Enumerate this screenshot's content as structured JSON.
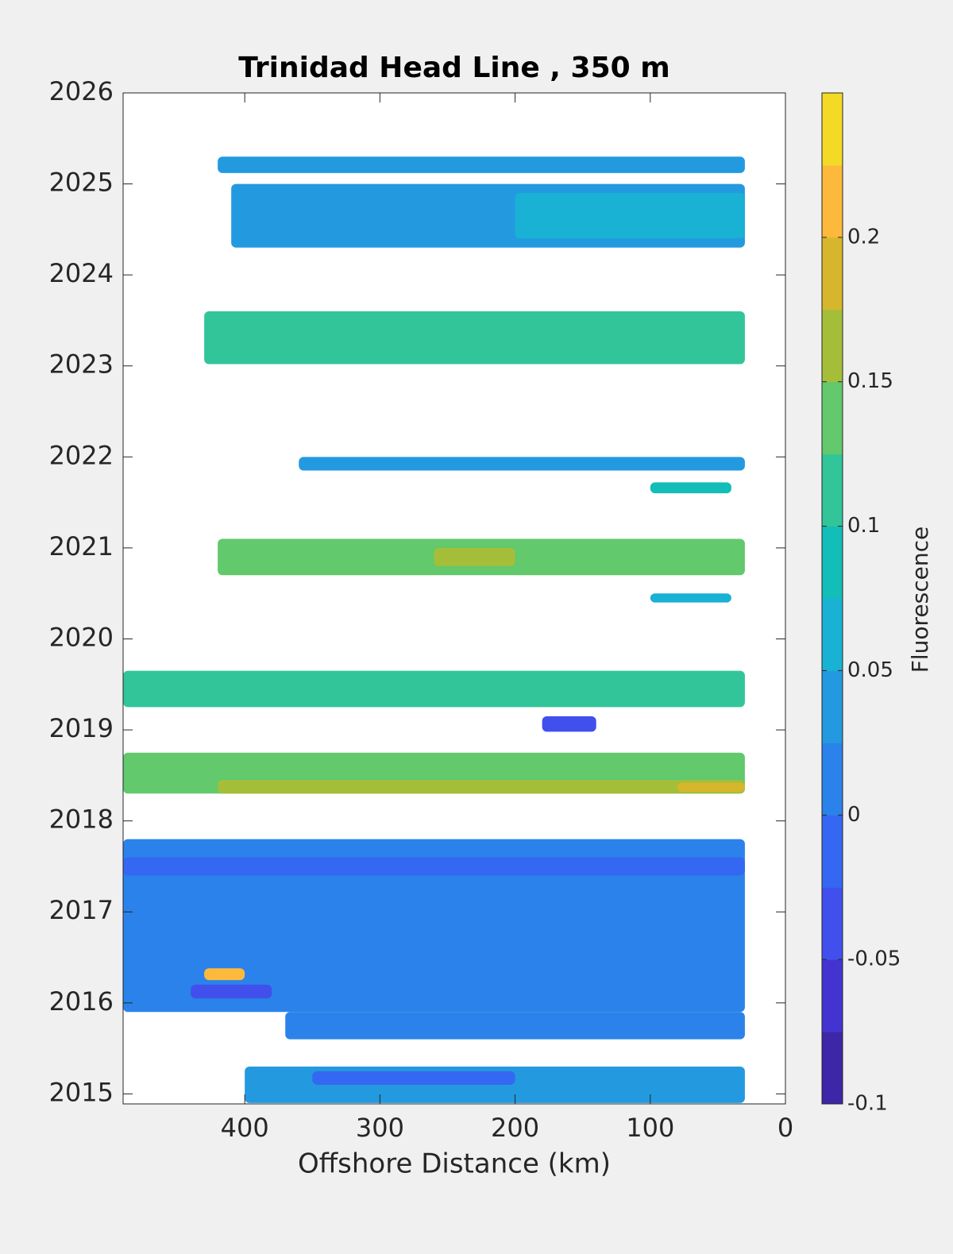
{
  "chart_data": {
    "type": "contourf",
    "title": "Trinidad Head Line , 350 m",
    "x_label": "Offshore Distance (km)",
    "colorbar_label": "Fluorescence",
    "xlim": [
      490,
      0
    ],
    "xticks": [
      400,
      300,
      200,
      100,
      0
    ],
    "ylim": [
      2014.89,
      2026
    ],
    "yticks": [
      2015,
      2016,
      2017,
      2018,
      2019,
      2020,
      2021,
      2022,
      2023,
      2024,
      2025,
      2026
    ],
    "clim": [
      -0.1,
      0.25
    ],
    "cticks": [
      -0.1,
      -0.05,
      0,
      0.05,
      0.1,
      0.15,
      0.2
    ],
    "colors": [
      "#3e26a8",
      "#4334d2",
      "#4150ec",
      "#3568f2",
      "#2b82ea",
      "#239ae0",
      "#19b1d4",
      "#13bdb8",
      "#32c59a",
      "#62c96c",
      "#a5be39",
      "#d6b62c",
      "#fcb93c",
      "#f3da26"
    ],
    "cells": [
      {
        "x": [
          420,
          30
        ],
        "t": [
          2025.12,
          2025.3
        ],
        "value": 0.04
      },
      {
        "x": [
          410,
          30
        ],
        "t": [
          2024.3,
          2025.0
        ],
        "value": 0.04
      },
      {
        "x": [
          200,
          30
        ],
        "t": [
          2024.4,
          2024.9
        ],
        "value": 0.06
      },
      {
        "x": [
          430,
          30
        ],
        "t": [
          2023.02,
          2023.6
        ],
        "value": 0.11
      },
      {
        "x": [
          360,
          30
        ],
        "t": [
          2021.85,
          2022.0
        ],
        "value": 0.03
      },
      {
        "x": [
          100,
          40
        ],
        "t": [
          2021.6,
          2021.72
        ],
        "value": 0.08
      },
      {
        "x": [
          420,
          30
        ],
        "t": [
          2020.7,
          2021.1
        ],
        "value": 0.14
      },
      {
        "x": [
          260,
          200
        ],
        "t": [
          2020.8,
          2021.0
        ],
        "value": 0.16
      },
      {
        "x": [
          100,
          40
        ],
        "t": [
          2020.4,
          2020.5
        ],
        "value": 0.05
      },
      {
        "x": [
          490,
          30
        ],
        "t": [
          2019.25,
          2019.65
        ],
        "value": 0.11
      },
      {
        "x": [
          180,
          140
        ],
        "t": [
          2018.98,
          2019.15
        ],
        "value": -0.04
      },
      {
        "x": [
          490,
          30
        ],
        "t": [
          2018.3,
          2018.75
        ],
        "value": 0.13
      },
      {
        "x": [
          420,
          30
        ],
        "t": [
          2018.3,
          2018.45
        ],
        "value": 0.15
      },
      {
        "x": [
          80,
          30
        ],
        "t": [
          2018.32,
          2018.42
        ],
        "value": 0.19
      },
      {
        "x": [
          490,
          30
        ],
        "t": [
          2015.9,
          2017.8
        ],
        "value": 0.01
      },
      {
        "x": [
          490,
          30
        ],
        "t": [
          2017.4,
          2017.6
        ],
        "value": -0.01
      },
      {
        "x": [
          440,
          380
        ],
        "t": [
          2016.05,
          2016.2
        ],
        "value": -0.04
      },
      {
        "x": [
          430,
          400
        ],
        "t": [
          2016.25,
          2016.38
        ],
        "value": 0.2
      },
      {
        "x": [
          370,
          30
        ],
        "t": [
          2015.6,
          2015.9
        ],
        "value": 0.01
      },
      {
        "x": [
          400,
          30
        ],
        "t": [
          2014.9,
          2015.3
        ],
        "value": 0.03
      },
      {
        "x": [
          350,
          200
        ],
        "t": [
          2015.1,
          2015.25
        ],
        "value": -0.01
      }
    ]
  }
}
